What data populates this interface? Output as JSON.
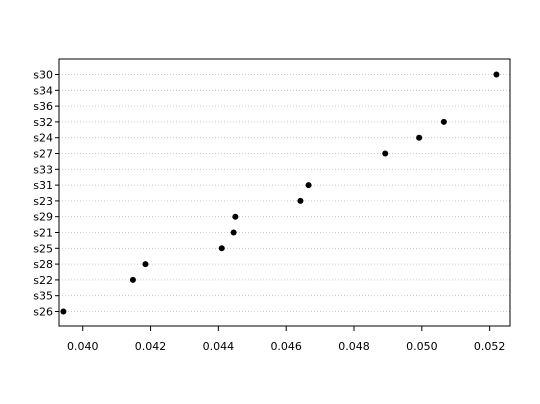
{
  "chart_data": {
    "type": "scatter",
    "style": "dotchart",
    "title": "",
    "xlabel": "",
    "ylabel": "",
    "xlim": [
      0.0393,
      0.0526
    ],
    "x_ticks": [
      "0.040",
      "0.042",
      "0.044",
      "0.046",
      "0.048",
      "0.050",
      "0.052"
    ],
    "x_tick_values": [
      0.04,
      0.042,
      0.044,
      0.046,
      0.048,
      0.05,
      0.052
    ],
    "grid": "horizontal-dotted",
    "marker_color": "#000000",
    "grid_color": "#bebebe",
    "categories": [
      "s30",
      "s34",
      "s36",
      "s32",
      "s24",
      "s27",
      "s33",
      "s31",
      "s23",
      "s29",
      "s21",
      "s25",
      "s28",
      "s22",
      "s35",
      "s26"
    ],
    "values": [
      0.0522,
      null,
      null,
      0.05065,
      0.04992,
      0.04892,
      null,
      0.04666,
      0.04642,
      0.0445,
      0.04445,
      0.0441,
      0.04185,
      0.04148,
      null,
      0.03943
    ]
  }
}
